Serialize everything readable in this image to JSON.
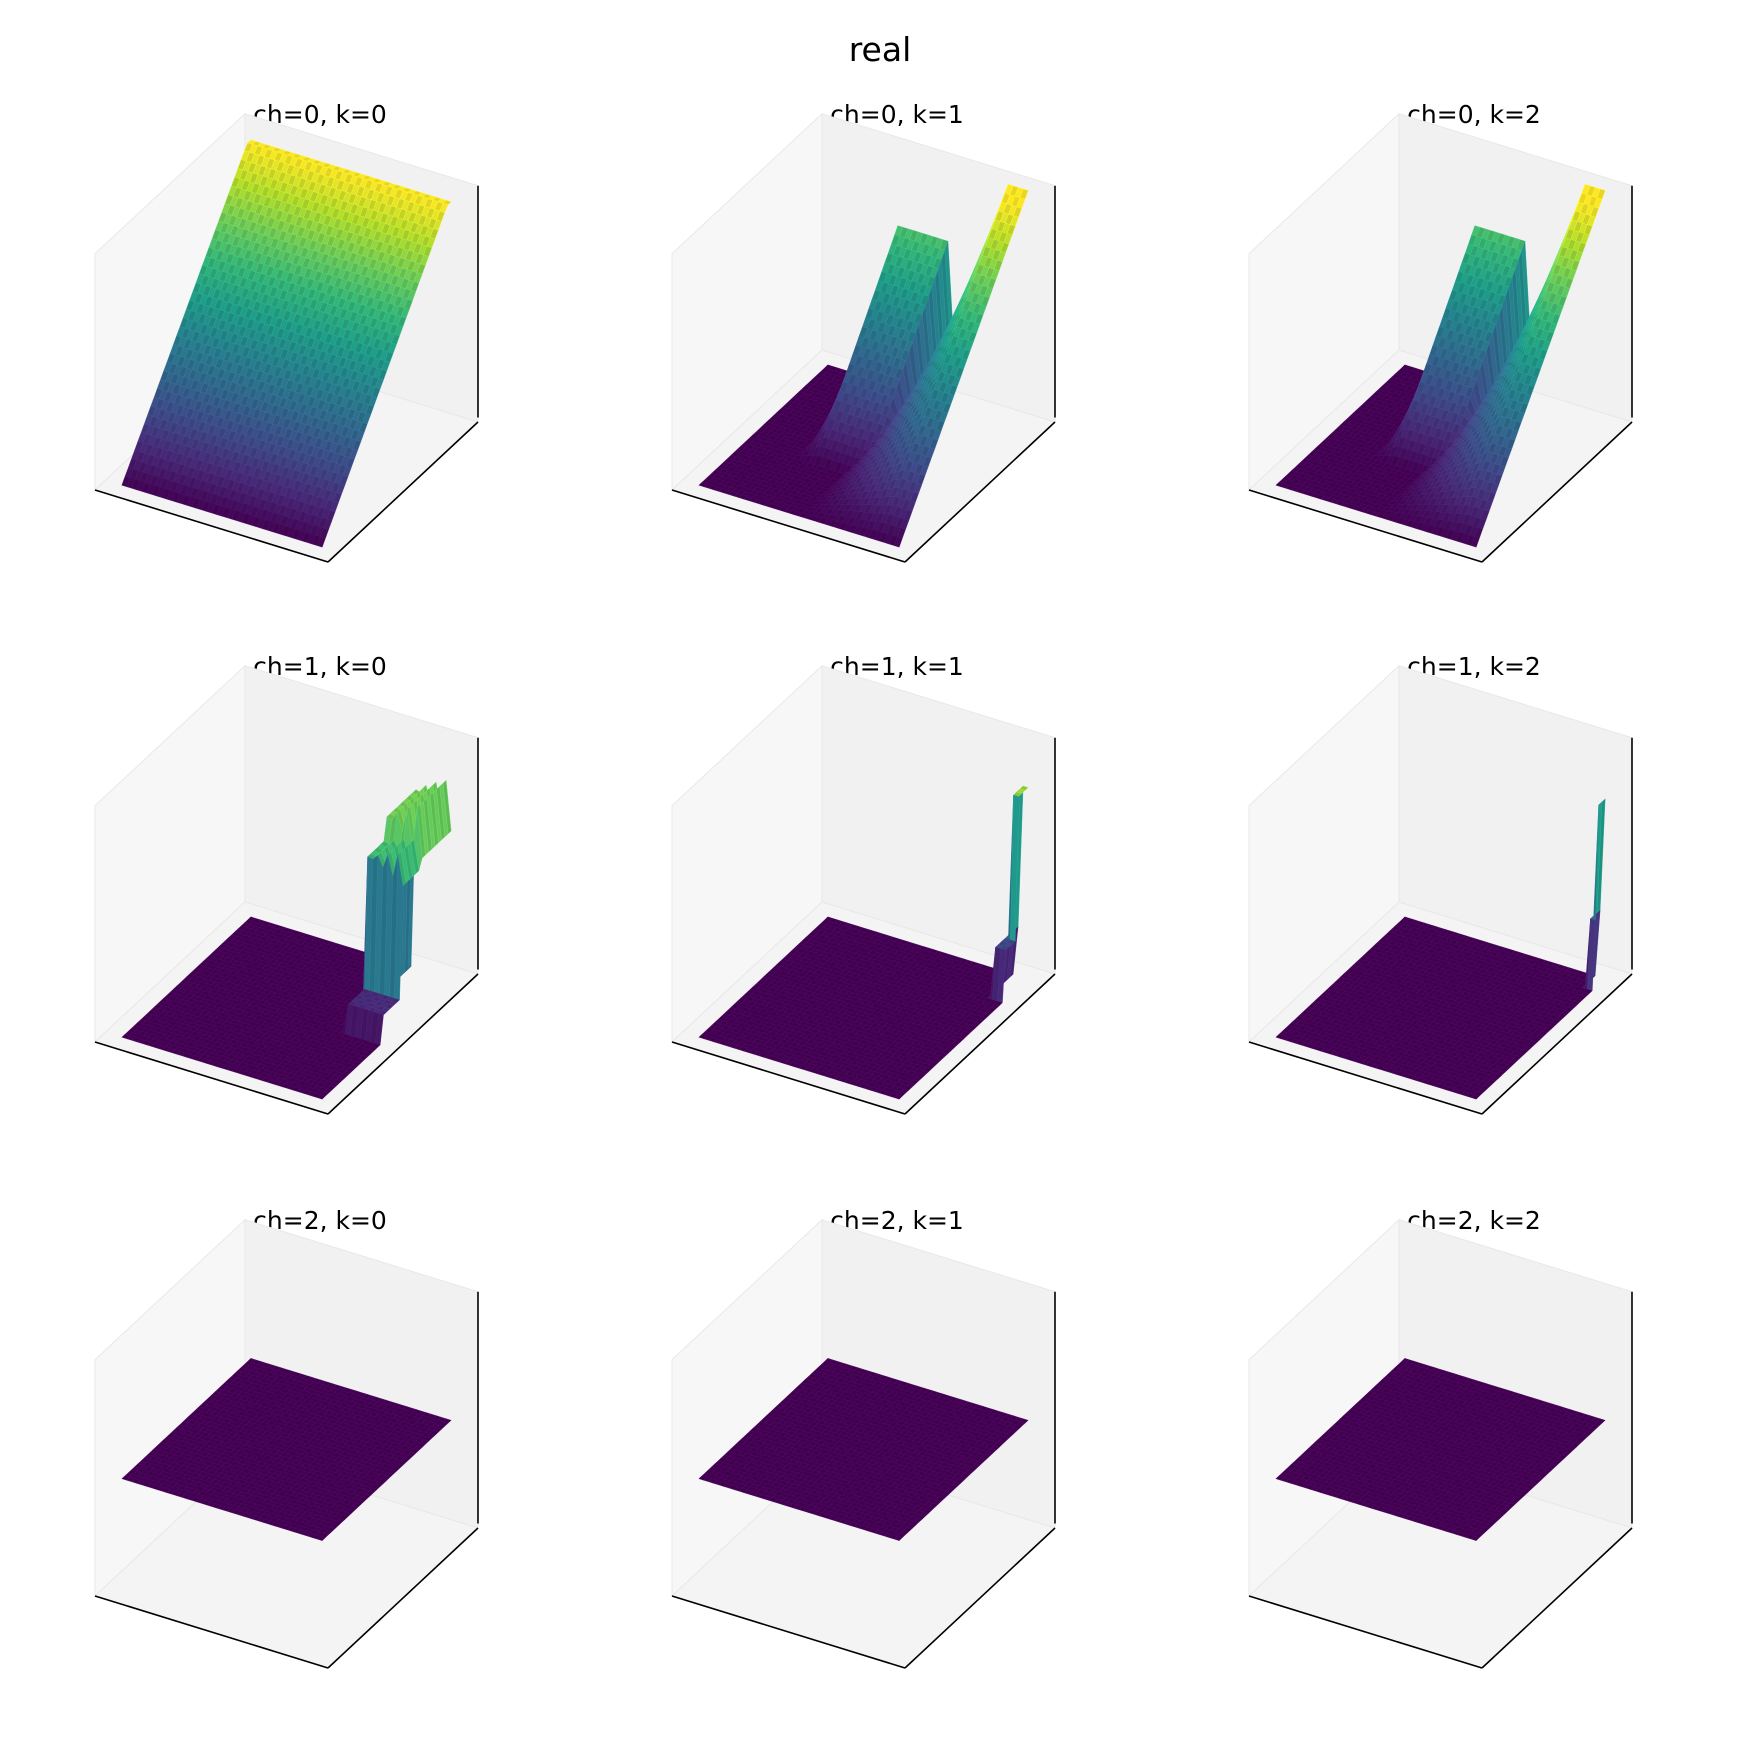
{
  "figure": {
    "title": "real"
  },
  "colormap": "viridis",
  "chart_data": [
    {
      "type": "surface",
      "title": "ch=0, k=0",
      "grid_size": 40,
      "pattern": "ramp",
      "zlim": [
        0,
        1
      ],
      "axes_ticks": false
    },
    {
      "type": "surface",
      "title": "ch=0, k=1",
      "grid_size": 40,
      "pattern": "ramp_peaks",
      "zlim": [
        0,
        1
      ],
      "axes_ticks": false
    },
    {
      "type": "surface",
      "title": "ch=0, k=2",
      "grid_size": 40,
      "pattern": "ramp_peaks",
      "zlim": [
        0,
        1
      ],
      "axes_ticks": false
    },
    {
      "type": "surface",
      "title": "ch=1, k=0",
      "grid_size": 40,
      "pattern": "corner_block",
      "zlim": [
        0,
        1
      ],
      "axes_ticks": false
    },
    {
      "type": "surface",
      "title": "ch=1, k=1",
      "grid_size": 40,
      "pattern": "corner_spike",
      "zlim": [
        0,
        1
      ],
      "axes_ticks": false
    },
    {
      "type": "surface",
      "title": "ch=1, k=2",
      "grid_size": 40,
      "pattern": "corner_spike_thin",
      "zlim": [
        0,
        1
      ],
      "axes_ticks": false
    },
    {
      "type": "surface",
      "title": "ch=2, k=0",
      "grid_size": 40,
      "pattern": "flat",
      "zlim": [
        -1,
        1
      ],
      "axes_ticks": false
    },
    {
      "type": "surface",
      "title": "ch=2, k=1",
      "grid_size": 40,
      "pattern": "flat",
      "zlim": [
        -1,
        1
      ],
      "axes_ticks": false
    },
    {
      "type": "surface",
      "title": "ch=2, k=2",
      "grid_size": 40,
      "pattern": "flat",
      "zlim": [
        -1,
        1
      ],
      "axes_ticks": false
    }
  ]
}
